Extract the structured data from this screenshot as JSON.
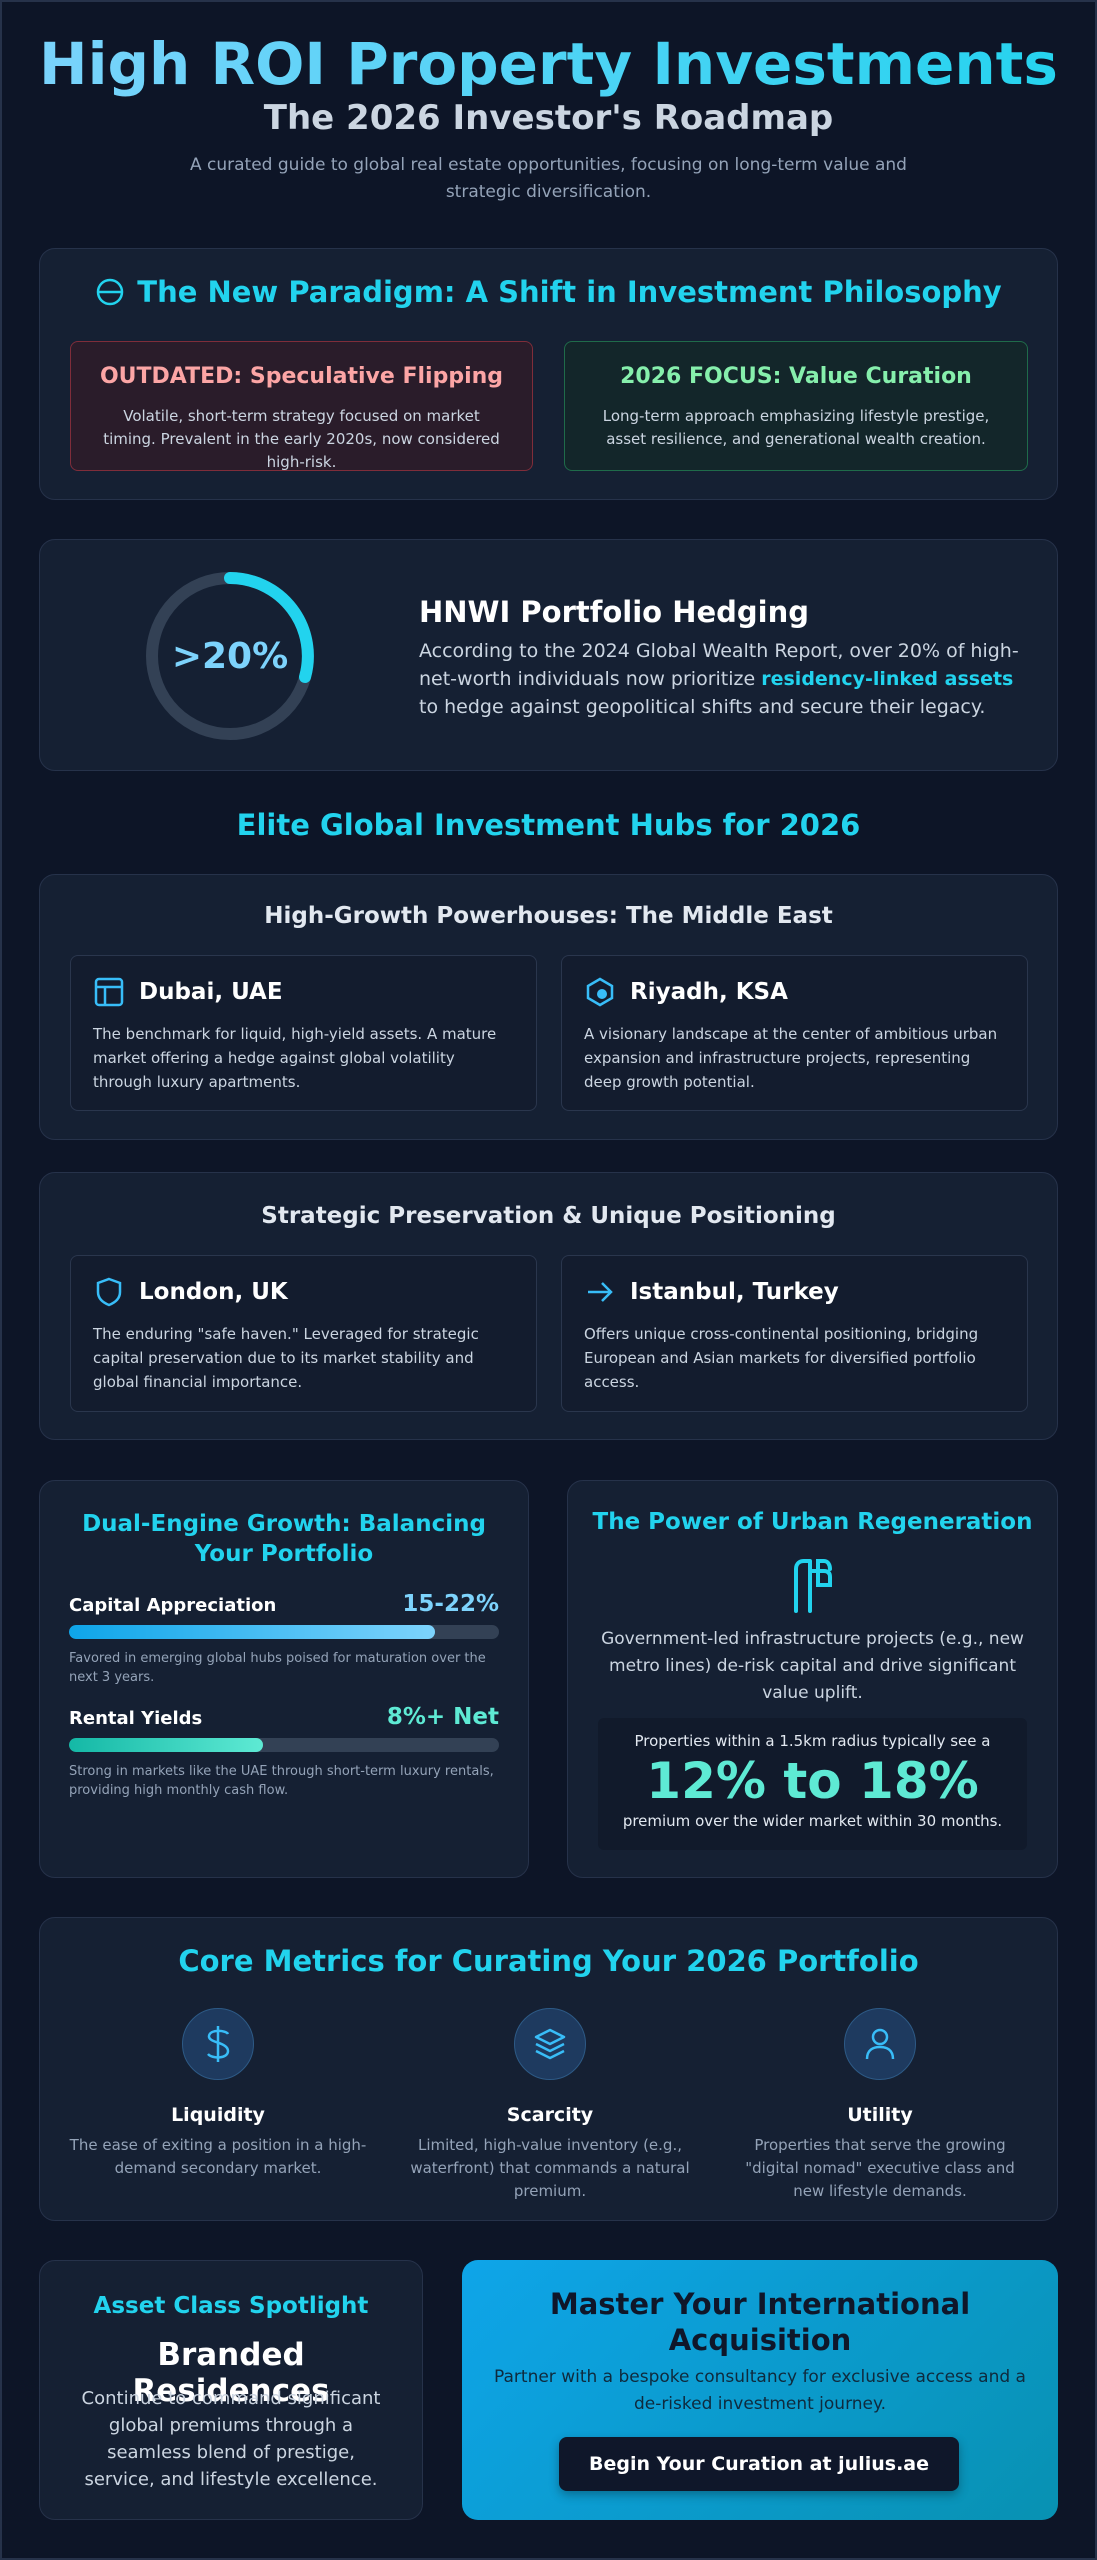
{
  "header": {
    "title": "High ROI Property Investments",
    "subtitle": "The 2026 Investor's Roadmap",
    "description": "A curated guide to global real estate opportunities, focusing on long-term value and strategic diversification."
  },
  "paradigm": {
    "title": "The New Paradigm: A Shift in Investment Philosophy",
    "outdated": {
      "title": "OUTDATED: Speculative Flipping",
      "text": "Volatile, short-term strategy focused on market timing. Prevalent in the early 2020s, now considered high-risk."
    },
    "focus": {
      "title": "2026 FOCUS: Value Curation",
      "text": "Long-term approach emphasizing lifestyle prestige, asset resilience, and generational wealth creation."
    }
  },
  "hedging": {
    "stat": ">20%",
    "title": "HNWI Portfolio Hedging",
    "text_before": "According to the 2024 Global Wealth Report, over 20% of high-net-worth individuals now prioritize ",
    "highlight": "residency-linked assets",
    "text_after": " to hedge against geopolitical shifts and secure their legacy."
  },
  "hubs": {
    "title": "Elite Global Investment Hubs for 2026",
    "groups": [
      {
        "title": "High-Growth Powerhouses: The Middle East",
        "cities": [
          {
            "name": "Dubai, UAE",
            "text": "The benchmark for liquid, high-yield assets. A mature market offering a hedge against global volatility through luxury apartments."
          },
          {
            "name": "Riyadh, KSA",
            "text": "A visionary landscape at the center of ambitious urban expansion and infrastructure projects, representing deep growth potential."
          }
        ]
      },
      {
        "title": "Strategic Preservation & Unique Positioning",
        "cities": [
          {
            "name": "London, UK",
            "text": "The enduring \"safe haven.\" Leveraged for strategic capital preservation due to its market stability and global financial importance."
          },
          {
            "name": "Istanbul, Turkey",
            "text": "Offers unique cross-continental positioning, bridging European and Asian markets for diversified portfolio access."
          }
        ]
      }
    ]
  },
  "growth": {
    "title": "Dual-Engine Growth: Balancing Your Portfolio",
    "metrics": [
      {
        "label": "Capital Appreciation",
        "value": "15-22%",
        "note": "Favored in emerging global hubs poised for maturation over the next 3 years."
      },
      {
        "label": "Rental Yields",
        "value": "8%+ Net",
        "note": "Strong in markets like the UAE through short-term luxury rentals, providing high monthly cash flow."
      }
    ]
  },
  "regeneration": {
    "title": "The Power of Urban Regeneration",
    "text": "Government-led infrastructure projects (e.g., new metro lines) de-risk capital and drive significant value uplift.",
    "callout_before": "Properties within a 1.5km radius typically see a",
    "callout_value": "12% to 18%",
    "callout_after": "premium over the wider market within 30 months."
  },
  "core": {
    "title": "Core Metrics for Curating Your 2026 Portfolio",
    "items": [
      {
        "label": "Liquidity",
        "text": "The ease of exiting a position in a high-demand secondary market."
      },
      {
        "label": "Scarcity",
        "text": "Limited, high-value inventory (e.g., waterfront) that commands a natural premium."
      },
      {
        "label": "Utility",
        "text": "Properties that serve the growing \"digital nomad\" executive class and new lifestyle demands."
      }
    ]
  },
  "spotlight": {
    "kicker": "Asset Class Spotlight",
    "title": "Branded Residences",
    "text": "Continue to command significant global premiums through a seamless blend of prestige, service, and lifestyle excellence."
  },
  "cta": {
    "title": "Master Your International Acquisition",
    "text": "Partner with a bespoke consultancy for exclusive access and a de-risked investment journey.",
    "button": "Begin Your Curation at julius.ae"
  }
}
